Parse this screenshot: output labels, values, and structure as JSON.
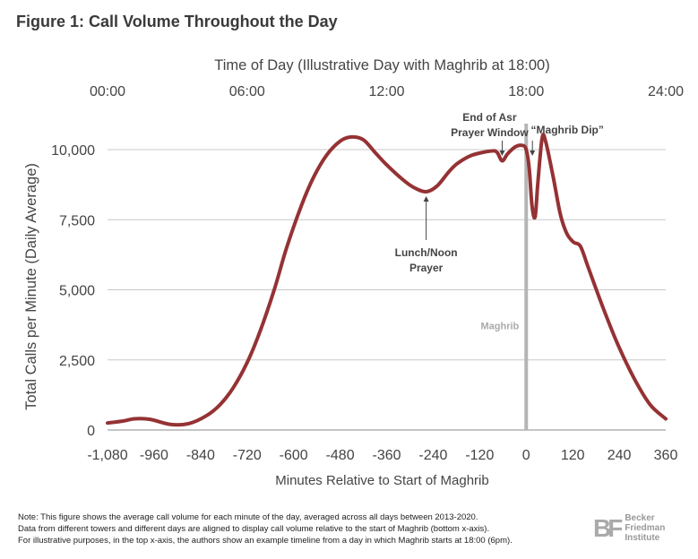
{
  "title": "Figure 1: Call Volume Throughout the Day",
  "chart_data": {
    "type": "line",
    "top_xlabel": "Time of Day (Illustrative Day with Maghrib at 18:00)",
    "top_xticks": [
      "00:00",
      "06:00",
      "12:00",
      "18:00",
      "24:00"
    ],
    "xlabel": "Minutes Relative to Start of Maghrib",
    "ylabel": "Total Calls per Minute (Daily Average)",
    "xlim": [
      -1080,
      360
    ],
    "ylim": [
      0,
      10000
    ],
    "xticks": [
      -1080,
      -960,
      -840,
      -720,
      -600,
      -480,
      -360,
      -240,
      -120,
      0,
      120,
      240,
      360
    ],
    "xtick_labels": [
      "-1,080",
      "-960",
      "-840",
      "-720",
      "-600",
      "-480",
      "-360",
      "-240",
      "-120",
      "0",
      "120",
      "240",
      "360"
    ],
    "yticks": [
      0,
      2500,
      5000,
      7500,
      10000
    ],
    "ytick_labels": [
      "0",
      "2,500",
      "5,000",
      "7,500",
      "10,000"
    ],
    "grid": "horizontal",
    "series": [
      {
        "name": "Call volume",
        "color": "#953234",
        "x": [
          -1080,
          -1040,
          -1010,
          -970,
          -918,
          -870,
          -826,
          -790,
          -756,
          -720,
          -687,
          -650,
          -618,
          -580,
          -549,
          -515,
          -480,
          -451,
          -420,
          -390,
          -363,
          -320,
          -290,
          -258,
          -230,
          -200,
          -178,
          -140,
          -90,
          -75,
          -62,
          -48,
          -28,
          -10,
          0,
          8,
          15,
          23,
          30,
          41,
          50,
          70,
          88,
          105,
          122,
          140,
          160,
          200,
          238,
          280,
          320,
          360
        ],
        "y": [
          250,
          320,
          400,
          380,
          200,
          230,
          500,
          900,
          1500,
          2400,
          3500,
          5000,
          6500,
          8000,
          9000,
          9800,
          10300,
          10450,
          10350,
          9900,
          9500,
          8950,
          8650,
          8500,
          8700,
          9200,
          9500,
          9800,
          9950,
          9900,
          9600,
          9850,
          10100,
          10150,
          10000,
          9300,
          8000,
          7600,
          8800,
          10400,
          10300,
          9000,
          7700,
          7000,
          6700,
          6550,
          5800,
          4300,
          3000,
          1800,
          900,
          400
        ]
      }
    ],
    "annotations": [
      {
        "text": [
          "Lunch/Noon",
          "Prayer"
        ],
        "x": -258,
        "y": 8500
      },
      {
        "text": [
          "End of Asr",
          "Prayer Window"
        ],
        "x": -62,
        "y": 9600
      },
      {
        "text": [
          "“Maghrib Dip”"
        ],
        "x": 23,
        "y": 10000
      },
      {
        "text": [
          "Maghrib"
        ],
        "x": 0,
        "y": 3600
      }
    ]
  },
  "note": [
    "Note: This figure shows the average call volume for each minute of the day, averaged across all days between 2013-2020.",
    "Data from different towers and different days are aligned to display call volume relative to the start of Maghrib (bottom x-axis).",
    "For illustrative purposes, in the top x-axis, the authors show an example timeline from a day in which Maghrib starts at 18:00 (6pm)."
  ],
  "logo": {
    "mark": "BF",
    "lines": [
      "Becker",
      "Friedman",
      "Institute"
    ]
  }
}
